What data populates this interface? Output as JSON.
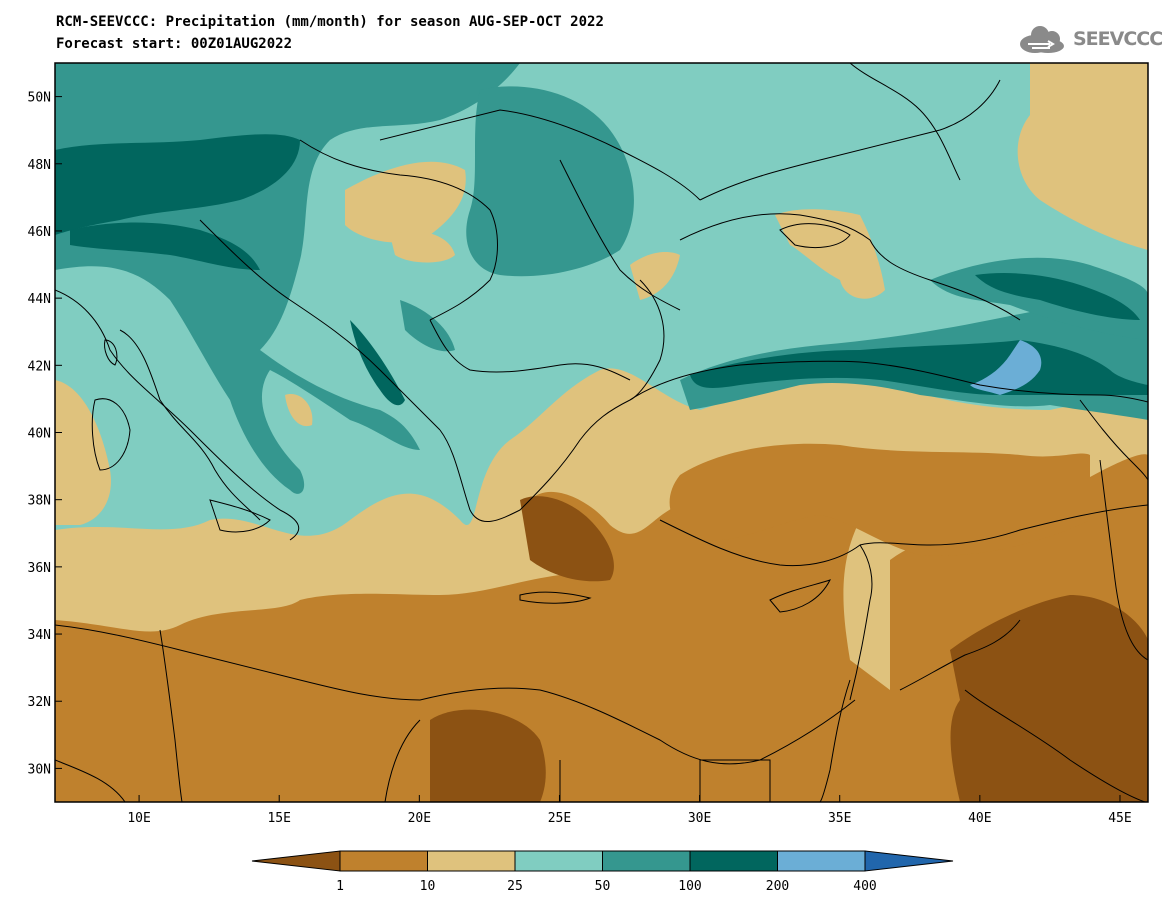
{
  "header": {
    "title_line1": "RCM-SEEVCCC: Precipitation (mm/month) for season AUG-SEP-OCT 2022",
    "title_line2": "Forecast start: 00Z01AUG2022",
    "logo_text": "SEEVCCC"
  },
  "map": {
    "lon_range": [
      7,
      46
    ],
    "lat_range": [
      29,
      51
    ],
    "lat_ticks": [
      {
        "value": 50,
        "label": "50N"
      },
      {
        "value": 48,
        "label": "48N"
      },
      {
        "value": 46,
        "label": "46N"
      },
      {
        "value": 44,
        "label": "44N"
      },
      {
        "value": 42,
        "label": "42N"
      },
      {
        "value": 40,
        "label": "40N"
      },
      {
        "value": 38,
        "label": "38N"
      },
      {
        "value": 36,
        "label": "36N"
      },
      {
        "value": 34,
        "label": "34N"
      },
      {
        "value": 32,
        "label": "32N"
      },
      {
        "value": 30,
        "label": "30N"
      }
    ],
    "lon_ticks": [
      {
        "value": 10,
        "label": "10E"
      },
      {
        "value": 15,
        "label": "15E"
      },
      {
        "value": 20,
        "label": "20E"
      },
      {
        "value": 25,
        "label": "25E"
      },
      {
        "value": 30,
        "label": "30E"
      },
      {
        "value": 35,
        "label": "35E"
      },
      {
        "value": 40,
        "label": "40E"
      },
      {
        "value": 45,
        "label": "45E"
      }
    ],
    "colors": {
      "lt1": "#8c5213",
      "c1_10": "#bf812d",
      "c10_25": "#dfc27d",
      "c25_50": "#80cdc1",
      "c50_100": "#35978f",
      "c100_200": "#01665e",
      "c200_400": "#6baed6",
      "gt400": "#2166ac"
    }
  },
  "colorbar": {
    "labels": [
      "1",
      "10",
      "25",
      "50",
      "100",
      "200",
      "400"
    ],
    "colors": [
      "#8c5213",
      "#bf812d",
      "#dfc27d",
      "#80cdc1",
      "#35978f",
      "#01665e",
      "#6baed6",
      "#2166ac"
    ]
  }
}
